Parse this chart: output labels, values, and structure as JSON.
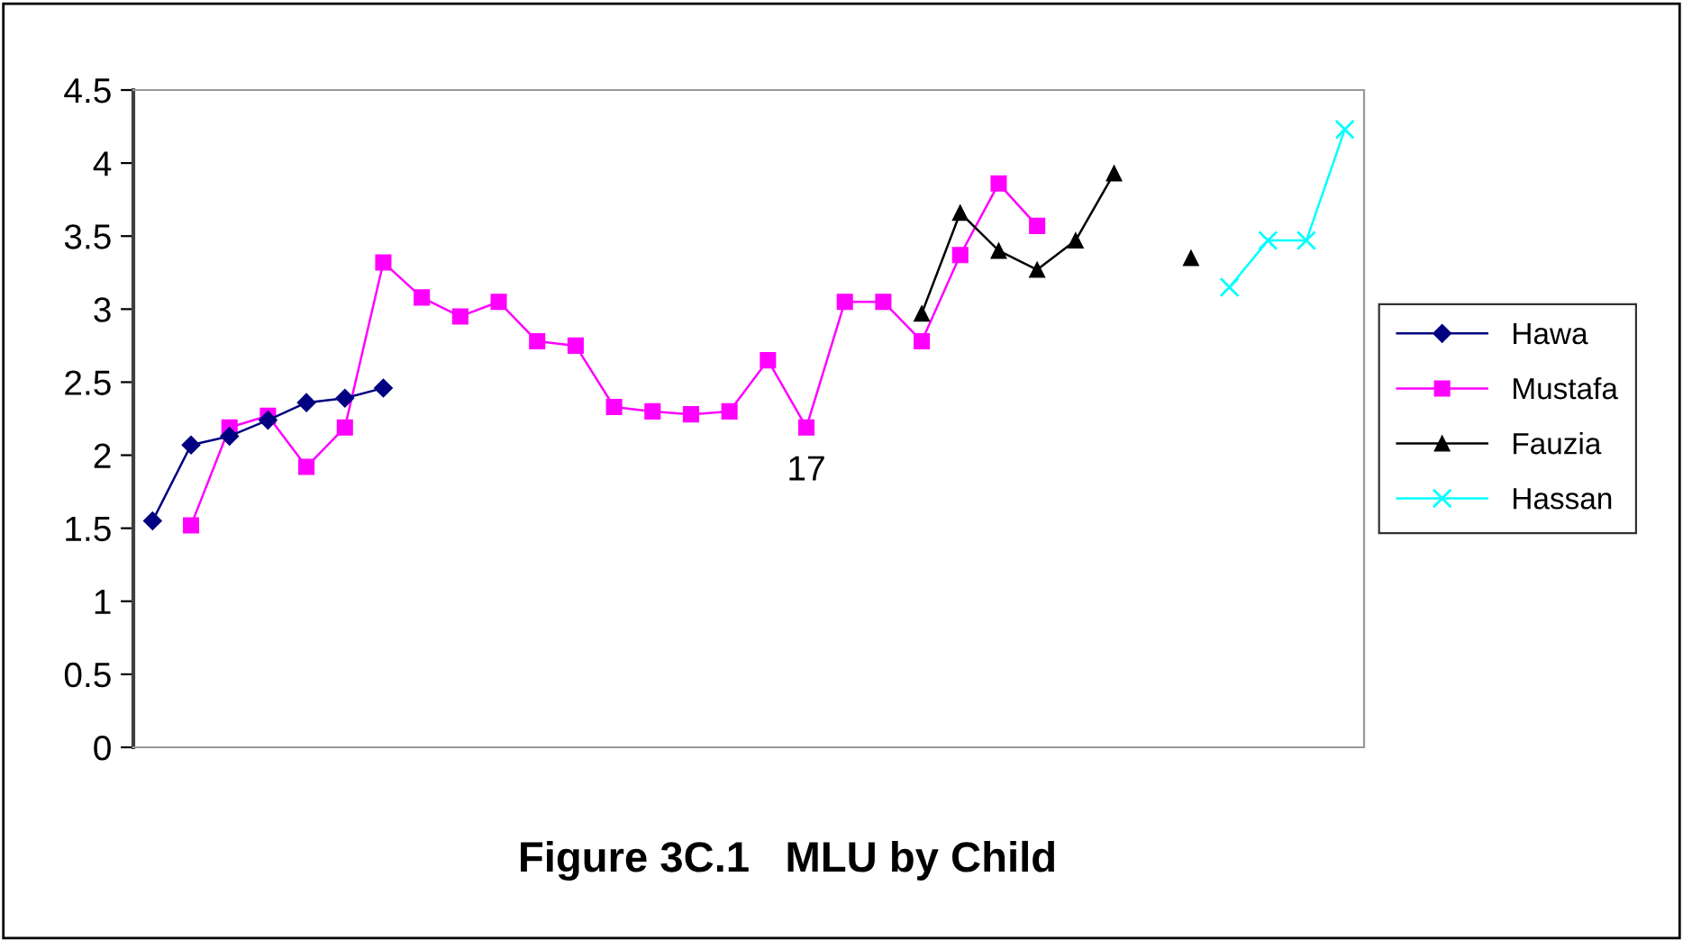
{
  "chart_data": {
    "type": "line",
    "title": "Figure 3C.1   MLU by Child",
    "categories": [
      null,
      null,
      null,
      null,
      null,
      null,
      null,
      null,
      null,
      null,
      null,
      null,
      null,
      null,
      null,
      null,
      null,
      null,
      null,
      null,
      null,
      null,
      null,
      null,
      null,
      null,
      null,
      null,
      null,
      null,
      null,
      null
    ],
    "series": [
      {
        "name": "Hawa",
        "color": "#000080",
        "marker": "diamond",
        "values": [
          1.55,
          2.07,
          2.13,
          2.24,
          2.36,
          2.39,
          2.46,
          null,
          null,
          null,
          null,
          null,
          null,
          null,
          null,
          null,
          null,
          null,
          null,
          null,
          null,
          null,
          null,
          null,
          null,
          null,
          null,
          null,
          null,
          null,
          null,
          null
        ]
      },
      {
        "name": "Mustafa",
        "color": "#ff00ff",
        "marker": "square",
        "values": [
          null,
          1.52,
          2.19,
          2.27,
          1.92,
          2.19,
          3.32,
          3.08,
          2.95,
          3.05,
          2.78,
          2.75,
          2.33,
          2.3,
          2.28,
          2.3,
          2.65,
          2.19,
          3.05,
          3.05,
          2.78,
          3.37,
          3.86,
          3.57,
          null,
          null,
          null,
          null,
          null,
          null,
          null,
          null
        ]
      },
      {
        "name": "Fauzia",
        "color": "#000000",
        "marker": "triangle",
        "values": [
          null,
          null,
          null,
          null,
          null,
          null,
          null,
          null,
          null,
          null,
          null,
          null,
          null,
          null,
          null,
          null,
          null,
          null,
          null,
          null,
          2.97,
          3.66,
          3.4,
          3.27,
          3.47,
          3.93,
          null,
          3.35,
          null,
          null,
          null,
          null
        ]
      },
      {
        "name": "Hassan",
        "color": "#00ffff",
        "marker": "cross",
        "values": [
          null,
          null,
          null,
          null,
          null,
          null,
          null,
          null,
          null,
          null,
          null,
          null,
          null,
          null,
          null,
          null,
          null,
          null,
          null,
          null,
          null,
          null,
          null,
          null,
          null,
          null,
          null,
          null,
          3.15,
          3.47,
          3.47,
          4.23
        ]
      }
    ],
    "ylim": [
      0,
      4.5
    ],
    "yticks": [
      0,
      0.5,
      1,
      1.5,
      2,
      2.5,
      3,
      3.5,
      4,
      4.5
    ],
    "annotations": [
      "17"
    ],
    "legend": "right",
    "grid": false
  }
}
